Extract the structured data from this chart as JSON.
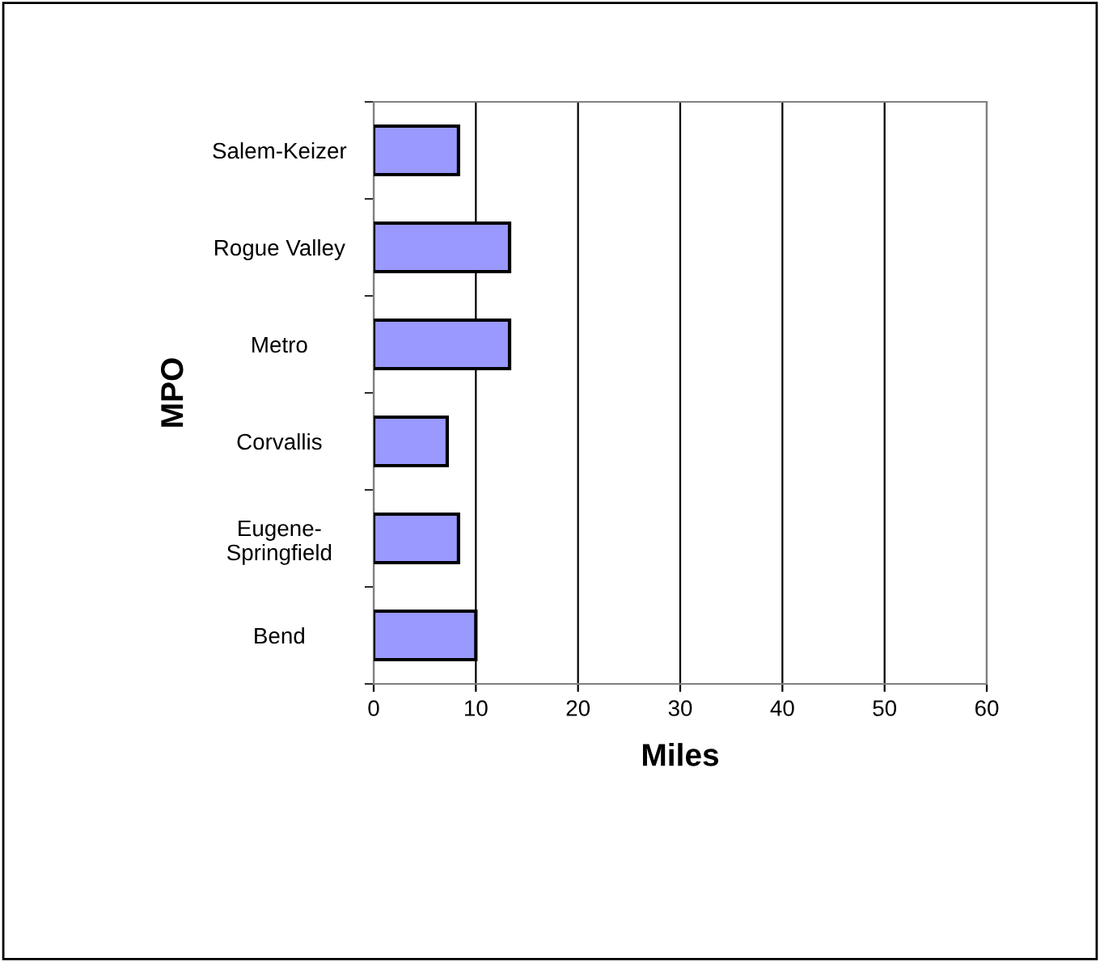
{
  "chart_data": {
    "type": "bar",
    "orientation": "horizontal",
    "xlabel": "Miles",
    "ylabel": "MPO",
    "categories": [
      "Salem-Keizer",
      "Rogue Valley",
      "Metro",
      "Corvallis",
      "Eugene-\nSpringfield",
      "Bend"
    ],
    "values": [
      8.3,
      13.3,
      13.3,
      7.2,
      8.3,
      10
    ],
    "color": "#9999ff",
    "xlim": [
      0,
      60
    ],
    "xticks": [
      0,
      10,
      20,
      30,
      40,
      50,
      60
    ],
    "grid": "x",
    "legend": false
  }
}
